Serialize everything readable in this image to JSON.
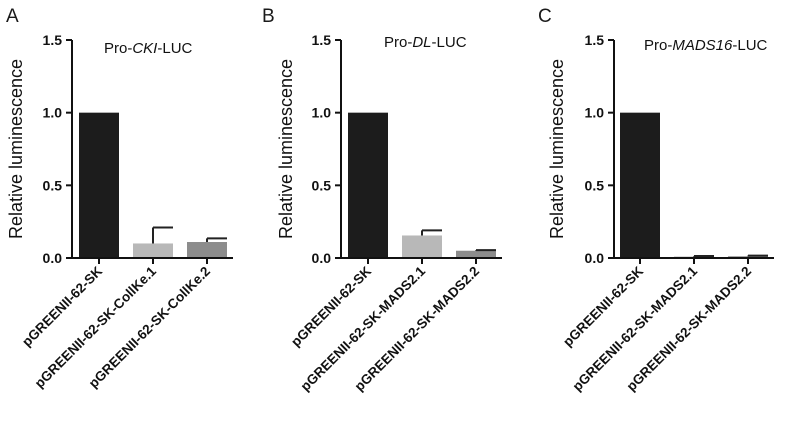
{
  "chart_data": [
    {
      "type": "bar",
      "panel": "A",
      "title_parts": [
        {
          "text": "Pro-",
          "italic": false
        },
        {
          "text": "CKI",
          "italic": true
        },
        {
          "text": "-LUC",
          "italic": false
        }
      ],
      "ylabel": "Relative luminescence",
      "ylim": [
        0,
        1.5
      ],
      "yticks": [
        "0.0",
        "0.5",
        "1.0",
        "1.5"
      ],
      "categories": [
        "pGREENII-62-SK",
        "pGREENII-62-SK-CollKe.1",
        "pGREENII-62-SK-CollKe.2"
      ],
      "values": [
        1.0,
        0.1,
        0.11
      ],
      "errors": [
        0,
        0.11,
        0.025
      ],
      "colors": [
        "#1c1c1c",
        "#b8b8b8",
        "#8c8c8c"
      ]
    },
    {
      "type": "bar",
      "panel": "B",
      "title_parts": [
        {
          "text": "Pro-",
          "italic": false
        },
        {
          "text": "DL",
          "italic": true
        },
        {
          "text": "-LUC",
          "italic": false
        }
      ],
      "ylabel": "Relative luminescence",
      "ylim": [
        0,
        1.5
      ],
      "yticks": [
        "0.0",
        "0.5",
        "1.0",
        "1.5"
      ],
      "categories": [
        "pGREENII-62-SK",
        "pGREENII-62-SK-MADS2.1",
        "pGREENII-62-SK-MADS2.2"
      ],
      "values": [
        1.0,
        0.155,
        0.05
      ],
      "errors": [
        0,
        0.035,
        0.004
      ],
      "colors": [
        "#1c1c1c",
        "#b8b8b8",
        "#8c8c8c"
      ]
    },
    {
      "type": "bar",
      "panel": "C",
      "title_parts": [
        {
          "text": "Pro-",
          "italic": false
        },
        {
          "text": "MADS16",
          "italic": true
        },
        {
          "text": "-LUC",
          "italic": false
        }
      ],
      "ylabel": "Relative luminescence",
      "ylim": [
        0,
        1.5
      ],
      "yticks": [
        "0.0",
        "0.5",
        "1.0",
        "1.5"
      ],
      "categories": [
        "pGREENII-62-SK",
        "pGREENII-62-SK-MADS2.1",
        "pGREENII-62-SK-MADS2.2"
      ],
      "values": [
        1.0,
        0.01,
        0.012
      ],
      "errors": [
        0,
        0.004,
        0.004
      ],
      "colors": [
        "#1c1c1c",
        "#b8b8b8",
        "#8c8c8c"
      ]
    }
  ]
}
